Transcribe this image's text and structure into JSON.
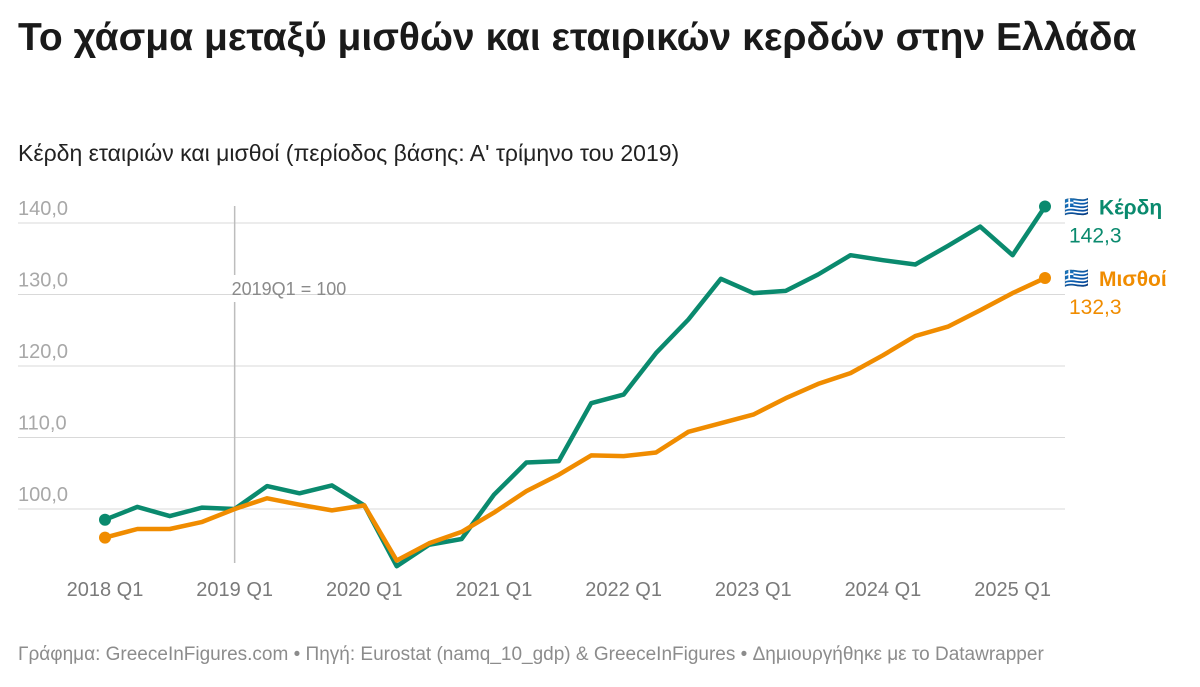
{
  "title": "Το χάσμα μεταξύ μισθών και εταιρικών κερδών στην Ελλάδα",
  "subtitle": "Κέρδη εταιριών και μισθοί (περίοδος βάσης: Α' τρίμηνο του 2019)",
  "footer": "Γράφημα: GreeceInFigures.com • Πηγή: Eurostat (namq_10_gdp) & GreeceInFigures • Δημιουργήθηκε με το Datawrapper",
  "chart_data": {
    "type": "line",
    "x": [
      "2018Q1",
      "2018Q2",
      "2018Q3",
      "2018Q4",
      "2019Q1",
      "2019Q2",
      "2019Q3",
      "2019Q4",
      "2020Q1",
      "2020Q2",
      "2020Q3",
      "2020Q4",
      "2021Q1",
      "2021Q2",
      "2021Q3",
      "2021Q4",
      "2022Q1",
      "2022Q2",
      "2022Q3",
      "2022Q4",
      "2023Q1",
      "2023Q2",
      "2023Q3",
      "2023Q4",
      "2024Q1",
      "2024Q2",
      "2024Q3",
      "2024Q4",
      "2025Q1",
      "2025Q2"
    ],
    "x_tick_labels": [
      "2018 Q1",
      "2019 Q1",
      "2020 Q1",
      "2021 Q1",
      "2022 Q1",
      "2023 Q1",
      "2024 Q1",
      "2025 Q1"
    ],
    "y_tick_labels": [
      "100,0",
      "110,0",
      "120,0",
      "130,0",
      "140,0"
    ],
    "ylim": [
      91,
      142.5
    ],
    "grid": true,
    "annotation": {
      "x": "2019Q1",
      "text": "2019Q1 = 100"
    },
    "series": [
      {
        "name": "Κέρδη",
        "color": "#0a8a6e",
        "flag": "🇬🇷",
        "last_label": "142,3",
        "values": [
          98.5,
          100.3,
          99.0,
          100.2,
          100.0,
          103.2,
          102.2,
          103.3,
          100.5,
          92.0,
          95.0,
          95.8,
          102.0,
          106.5,
          106.7,
          114.8,
          116.0,
          121.8,
          126.5,
          132.2,
          130.2,
          130.5,
          132.8,
          135.5,
          134.8,
          134.2,
          136.8,
          139.5,
          135.5,
          142.3
        ]
      },
      {
        "name": "Μισθοί",
        "color": "#f08c00",
        "flag": "🇬🇷",
        "last_label": "132,3",
        "values": [
          96.0,
          97.2,
          97.2,
          98.2,
          100.0,
          101.5,
          100.6,
          99.8,
          100.5,
          92.8,
          95.2,
          96.8,
          99.5,
          102.5,
          104.8,
          107.5,
          107.4,
          107.9,
          110.8,
          112.0,
          113.2,
          115.5,
          117.5,
          119.0,
          121.5,
          124.2,
          125.5,
          127.8,
          130.2,
          132.3
        ]
      }
    ]
  }
}
